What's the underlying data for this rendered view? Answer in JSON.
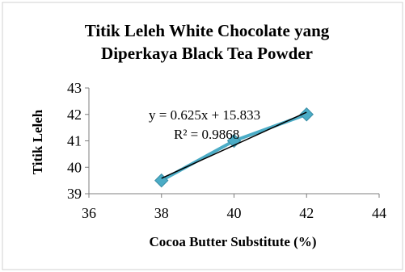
{
  "chart_data": {
    "type": "scatter",
    "title_lines": [
      "Titik Leleh White Chocolate yang",
      "Diperkaya Black Tea Powder"
    ],
    "xlabel": "Cocoa Butter Substitute (%)",
    "ylabel": "Titik Leleh",
    "xlim": [
      36,
      44
    ],
    "ylim": [
      39,
      43
    ],
    "xticks": [
      "36",
      "38",
      "40",
      "42",
      "44"
    ],
    "yticks": [
      "39",
      "40",
      "41",
      "42",
      "43"
    ],
    "grid": false,
    "legend": "none",
    "series": [
      {
        "x": [
          38,
          40,
          42
        ],
        "y": [
          39.5,
          41,
          42
        ],
        "marker": "diamond",
        "color": "#4bacc6",
        "line": true
      }
    ],
    "trendline": {
      "type": "linear",
      "slope": 0.625,
      "intercept": 15.833,
      "x_range": [
        38,
        42
      ],
      "color": "#000000",
      "equation": "y = 0.625x + 15.833",
      "r_squared": "R² = 0.9868"
    }
  }
}
